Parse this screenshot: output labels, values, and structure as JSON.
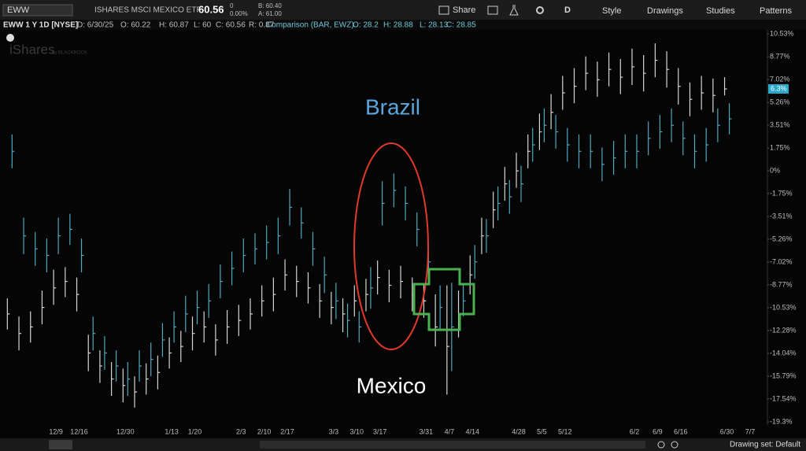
{
  "toolbar": {
    "symbol": "EWW",
    "description": "ISHARES MSCI MEXICO ETF",
    "last": "60.56",
    "change": "0",
    "change_pct": "0.00%",
    "bid": "B: 60.40",
    "ask": "A: 61.00",
    "share": "Share",
    "aggregation": "D",
    "style": "Style",
    "drawings": "Drawings",
    "studies": "Studies",
    "patterns": "Patterns"
  },
  "info_bar": {
    "title": "EWW 1 Y 1D [NYSE]",
    "date": "D: 6/30/25",
    "open": "O: 60.22",
    "high": "H: 60.87",
    "low": "L: 60",
    "close": "C: 60.56",
    "range": "R: 0.87",
    "comparison": "Comparison (BAR, EWZ)",
    "cmp_open": "O: 28.2",
    "cmp_high": "H: 28.88",
    "cmp_low": "L: 28.13",
    "cmp_close": "C: 28.85"
  },
  "watermark": {
    "brand": "iShares",
    "by": "by BLACKROCK"
  },
  "chart_data": {
    "type": "ohlc",
    "annotations": {
      "upper": "Brazil",
      "lower": "Mexico"
    },
    "categories": [
      null,
      null,
      null,
      null,
      "12/9",
      null,
      "12/16",
      null,
      null,
      null,
      "12/30",
      null,
      null,
      null,
      "1/13",
      null,
      "1/20",
      null,
      null,
      null,
      "2/3",
      null,
      "2/10",
      null,
      "2/17",
      null,
      null,
      null,
      "3/3",
      null,
      "3/10",
      null,
      "3/17",
      null,
      null,
      null,
      "3/31",
      null,
      "4/7",
      null,
      "4/14",
      null,
      null,
      null,
      "4/28",
      null,
      "5/5",
      null,
      "5/12",
      null,
      null,
      null,
      null,
      null,
      "6/2",
      null,
      "6/9",
      null,
      "6/16",
      null,
      null,
      null,
      "6/30",
      null,
      "7/7",
      null
    ],
    "series": [
      {
        "name": "EWW",
        "color": "#d6d6d6",
        "last_label": "6.3%",
        "last_value": 6.3,
        "values": [
          -11,
          -12.5,
          -12,
          -10.5,
          -9,
          -8.5,
          -9.5,
          -14,
          -15,
          -16,
          -16.5,
          -17,
          -16,
          -15.5,
          -14,
          -13.5,
          -12.5,
          -12,
          -13,
          -12,
          -11.5,
          -11,
          -10,
          -9.5,
          -8,
          -8.5,
          -9,
          -10,
          -10.5,
          -11,
          -10,
          -9.5,
          -8.2,
          -8.8,
          -8.5,
          -9.5,
          -10,
          -12,
          -13.5,
          -11,
          -8,
          -5,
          -3,
          -1,
          0,
          1.5,
          3,
          4.5,
          6,
          6.5,
          7.5,
          7,
          7.8,
          7.2,
          8,
          7.5,
          8.5,
          7.8,
          6.5,
          5.5,
          6,
          5.8,
          6.3,
          null,
          null,
          null
        ],
        "high": [
          -9.8,
          -11.2,
          -10.8,
          -9.2,
          -7.6,
          -7.4,
          -8.2,
          -12.6,
          -13.8,
          -14.7,
          -15.2,
          -15.8,
          -14.8,
          -14.2,
          -12.8,
          -12.3,
          -11.2,
          -10.8,
          -11.8,
          -10.7,
          -10.3,
          -9.8,
          -8.8,
          -8.2,
          -6.8,
          -7.3,
          -7.8,
          -8.7,
          -9.3,
          -9.8,
          -8.8,
          -8.3,
          -6.9,
          -7.6,
          -7.3,
          -8.2,
          -8.7,
          -9.5,
          -8.8,
          -9.2,
          -6.5,
          -3.6,
          -1.6,
          0.3,
          1.4,
          2.8,
          4.4,
          5.9,
          7.3,
          7.9,
          8.8,
          8.4,
          9.1,
          8.6,
          9.4,
          8.9,
          9.8,
          9.2,
          7.9,
          6.8,
          7.3,
          7.1,
          7.2,
          null,
          null,
          null
        ],
        "low": [
          -12.2,
          -13.8,
          -13.2,
          -11.8,
          -10.3,
          -9.7,
          -10.8,
          -15.4,
          -16.3,
          -17.3,
          -17.8,
          -18.2,
          -17.2,
          -16.8,
          -15.2,
          -14.7,
          -13.8,
          -13.2,
          -14.2,
          -13.3,
          -12.7,
          -12.2,
          -11.2,
          -10.8,
          -9.2,
          -9.7,
          -10.2,
          -11.3,
          -11.8,
          -12.4,
          -11.2,
          -10.8,
          -9.5,
          -10.1,
          -9.8,
          -10.8,
          -11.3,
          -13.5,
          -17.2,
          -12.8,
          -9.5,
          -6.4,
          -4.4,
          -2.3,
          -1.3,
          0.2,
          1.6,
          3.2,
          4.7,
          5.2,
          6.2,
          5.7,
          6.5,
          5.9,
          6.6,
          6.1,
          7.2,
          6.4,
          5.1,
          4.2,
          4.7,
          4.5,
          5.8,
          null,
          null,
          null
        ]
      },
      {
        "name": "EWZ",
        "color": "#4fa9bf",
        "values": [
          1.5,
          -5,
          -6,
          -6.5,
          -5,
          -4.5,
          -6.5,
          -12.5,
          -14,
          -15,
          -16,
          -15,
          -14.5,
          -13,
          -12,
          -11,
          -10.5,
          -10,
          -8.5,
          -7.5,
          -6.5,
          -6,
          -5.5,
          -5,
          -2.8,
          -4,
          -6,
          -8,
          -10,
          -11.5,
          -12,
          -9,
          -2.5,
          -1.5,
          -2.5,
          -4.5,
          -7,
          -10.5,
          -12,
          -10,
          -7,
          -5,
          -2.5,
          -2,
          -1,
          2,
          3.5,
          3,
          2,
          1.5,
          1.5,
          0.5,
          1,
          1.5,
          1.5,
          2.5,
          3,
          3.5,
          2.5,
          1.5,
          2,
          3.5,
          4,
          null,
          null,
          null
        ],
        "high": [
          2.8,
          -3.6,
          -4.7,
          -5.2,
          -3.6,
          -3.3,
          -5.2,
          -11.2,
          -12.7,
          -13.8,
          -14.7,
          -13.8,
          -13.2,
          -11.7,
          -10.8,
          -9.6,
          -9.2,
          -8.7,
          -7.2,
          -6.2,
          -5.2,
          -4.8,
          -4.2,
          -3.6,
          -1.4,
          -2.8,
          -4.7,
          -6.6,
          -8.6,
          -10.2,
          -10.8,
          -7.4,
          -0.8,
          -0.2,
          -1.2,
          -3.2,
          -5.6,
          -8.8,
          -8.6,
          -8.8,
          -5.7,
          -3.7,
          -1.2,
          -0.7,
          0.4,
          3.3,
          4.8,
          4.3,
          3.3,
          2.8,
          2.8,
          1.8,
          2.3,
          2.8,
          2.8,
          3.8,
          4.3,
          4.8,
          3.8,
          2.8,
          3.3,
          4.8,
          5.2,
          null,
          null,
          null
        ],
        "low": [
          0.2,
          -6.4,
          -7.3,
          -7.8,
          -6.4,
          -5.7,
          -7.8,
          -13.8,
          -15.3,
          -16.2,
          -17.3,
          -16.2,
          -15.8,
          -14.3,
          -13.2,
          -12.4,
          -11.8,
          -11.3,
          -9.8,
          -8.8,
          -7.8,
          -7.2,
          -6.8,
          -6.4,
          -4.2,
          -5.2,
          -7.3,
          -9.4,
          -11.4,
          -12.8,
          -13.2,
          -10.6,
          -4.2,
          -2.8,
          -3.8,
          -5.8,
          -8.4,
          -12.2,
          -15.4,
          -11.2,
          -8.3,
          -6.3,
          -3.8,
          -3.3,
          -2.4,
          0.7,
          2.2,
          1.7,
          0.7,
          0.2,
          0.2,
          -0.8,
          -0.3,
          0.2,
          0.2,
          1.2,
          1.7,
          2.2,
          1.2,
          0.2,
          0.7,
          2.2,
          2.8,
          null,
          null,
          null
        ]
      }
    ],
    "ylim": [
      -19.54,
      11.2
    ],
    "yticks": [
      {
        "value": 10.53,
        "label": "10.53%"
      },
      {
        "value": 8.77,
        "label": "8.77%"
      },
      {
        "value": 7.02,
        "label": "7.02%"
      },
      {
        "value": 5.26,
        "label": "5.26%"
      },
      {
        "value": 3.51,
        "label": "3.51%"
      },
      {
        "value": 1.75,
        "label": "1.75%"
      },
      {
        "value": 0,
        "label": "0%"
      },
      {
        "value": -1.75,
        "label": "-1.75%"
      },
      {
        "value": -3.51,
        "label": "-3.51%"
      },
      {
        "value": -5.26,
        "label": "-5.26%"
      },
      {
        "value": -7.02,
        "label": "-7.02%"
      },
      {
        "value": -8.77,
        "label": "-8.77%"
      },
      {
        "value": -10.53,
        "label": "-10.53%"
      },
      {
        "value": -12.28,
        "label": "-12.28%"
      },
      {
        "value": -14.04,
        "label": "-14.04%"
      },
      {
        "value": -15.79,
        "label": "-15.79%"
      },
      {
        "value": -17.54,
        "label": "-17.54%"
      },
      {
        "value": -19.3,
        "label": "-19.3%"
      }
    ],
    "grid": false
  },
  "footer": {
    "drawing_set": "Drawing set: Default"
  }
}
